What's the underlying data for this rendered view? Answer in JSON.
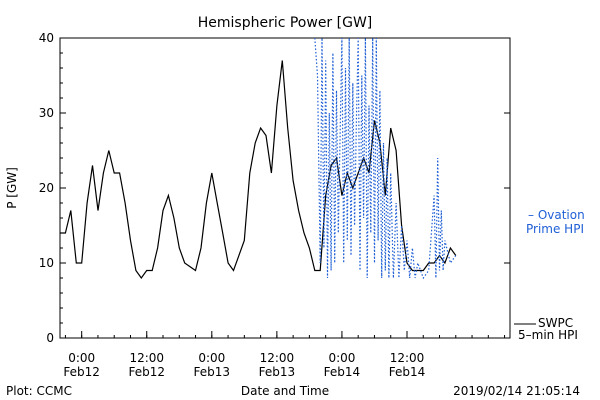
{
  "chart_data": {
    "type": "line",
    "title": "Hemispheric Power [GW]",
    "xlabel": "Date and Time",
    "ylabel": "P [GW]",
    "ylim": [
      0,
      40
    ],
    "yticks": [
      0,
      10,
      20,
      30,
      40
    ],
    "xlim": [
      "2019-02-11 20:00",
      "2019-02-15 07:00"
    ],
    "xticks": [
      {
        "t": "2019-02-12 00:00",
        "time": "0:00",
        "date": "Feb12"
      },
      {
        "t": "2019-02-12 12:00",
        "time": "12:00",
        "date": "Feb12"
      },
      {
        "t": "2019-02-13 00:00",
        "time": "0:00",
        "date": "Feb13"
      },
      {
        "t": "2019-02-13 12:00",
        "time": "12:00",
        "date": "Feb13"
      },
      {
        "t": "2019-02-14 00:00",
        "time": "0:00",
        "date": "Feb14"
      },
      {
        "t": "2019-02-14 12:00",
        "time": "12:00",
        "date": "Feb14"
      }
    ],
    "grid": false,
    "legend_position": "right",
    "footer_left": "Plot: CCMC",
    "footer_right": "2019/02/14 21:05:14",
    "series": [
      {
        "name": "SWPC 5-min HPI",
        "legend_lines": [
          "SWPC",
          "5–min HPI"
        ],
        "color": "#000000",
        "style": "solid",
        "points": [
          [
            "2019-02-11 20:00",
            14
          ],
          [
            "2019-02-11 21:00",
            14
          ],
          [
            "2019-02-11 22:00",
            17
          ],
          [
            "2019-02-11 23:00",
            10
          ],
          [
            "2019-02-12 00:00",
            10
          ],
          [
            "2019-02-12 01:00",
            18
          ],
          [
            "2019-02-12 02:00",
            23
          ],
          [
            "2019-02-12 03:00",
            17
          ],
          [
            "2019-02-12 04:00",
            22
          ],
          [
            "2019-02-12 05:00",
            25
          ],
          [
            "2019-02-12 06:00",
            22
          ],
          [
            "2019-02-12 07:00",
            22
          ],
          [
            "2019-02-12 08:00",
            18
          ],
          [
            "2019-02-12 09:00",
            13
          ],
          [
            "2019-02-12 10:00",
            9
          ],
          [
            "2019-02-12 11:00",
            8
          ],
          [
            "2019-02-12 12:00",
            9
          ],
          [
            "2019-02-12 13:00",
            9
          ],
          [
            "2019-02-12 14:00",
            12
          ],
          [
            "2019-02-12 15:00",
            17
          ],
          [
            "2019-02-12 16:00",
            19
          ],
          [
            "2019-02-12 17:00",
            16
          ],
          [
            "2019-02-12 18:00",
            12
          ],
          [
            "2019-02-12 19:00",
            10
          ],
          [
            "2019-02-12 21:00",
            9
          ],
          [
            "2019-02-12 22:00",
            12
          ],
          [
            "2019-02-12 23:00",
            18
          ],
          [
            "2019-02-13 00:00",
            22
          ],
          [
            "2019-02-13 01:00",
            18
          ],
          [
            "2019-02-13 02:00",
            14
          ],
          [
            "2019-02-13 03:00",
            10
          ],
          [
            "2019-02-13 04:00",
            9
          ],
          [
            "2019-02-13 06:00",
            13
          ],
          [
            "2019-02-13 07:00",
            22
          ],
          [
            "2019-02-13 08:00",
            26
          ],
          [
            "2019-02-13 09:00",
            28
          ],
          [
            "2019-02-13 10:00",
            27
          ],
          [
            "2019-02-13 11:00",
            22
          ],
          [
            "2019-02-13 12:00",
            31
          ],
          [
            "2019-02-13 13:00",
            37
          ],
          [
            "2019-02-13 14:00",
            28
          ],
          [
            "2019-02-13 15:00",
            21
          ],
          [
            "2019-02-13 16:00",
            17
          ],
          [
            "2019-02-13 17:00",
            14
          ],
          [
            "2019-02-13 18:00",
            12
          ],
          [
            "2019-02-13 19:00",
            9
          ],
          [
            "2019-02-13 20:00",
            9
          ],
          [
            "2019-02-13 21:00",
            19
          ],
          [
            "2019-02-13 22:00",
            23
          ],
          [
            "2019-02-13 23:00",
            24
          ],
          [
            "2019-02-14 00:00",
            19
          ],
          [
            "2019-02-14 01:00",
            22
          ],
          [
            "2019-02-14 02:00",
            20
          ],
          [
            "2019-02-14 03:00",
            22
          ],
          [
            "2019-02-14 04:00",
            24
          ],
          [
            "2019-02-14 05:00",
            22
          ],
          [
            "2019-02-14 06:00",
            29
          ],
          [
            "2019-02-14 07:00",
            26
          ],
          [
            "2019-02-14 08:00",
            19
          ],
          [
            "2019-02-14 09:00",
            28
          ],
          [
            "2019-02-14 10:00",
            25
          ],
          [
            "2019-02-14 11:00",
            15
          ],
          [
            "2019-02-14 12:00",
            10
          ],
          [
            "2019-02-14 13:00",
            9
          ],
          [
            "2019-02-14 15:00",
            9
          ],
          [
            "2019-02-14 16:00",
            10
          ],
          [
            "2019-02-14 17:00",
            10
          ],
          [
            "2019-02-14 18:00",
            11
          ],
          [
            "2019-02-14 19:00",
            10
          ],
          [
            "2019-02-14 20:00",
            12
          ],
          [
            "2019-02-14 21:00",
            11
          ]
        ]
      },
      {
        "name": "Ovation Prime HPI",
        "legend_lines": [
          "– Ovation",
          "Prime HPI"
        ],
        "color": "#1f5fd6",
        "style": "dotted",
        "points": [
          [
            "2019-02-13 19:00",
            40
          ],
          [
            "2019-02-13 19:30",
            35
          ],
          [
            "2019-02-13 20:00",
            10
          ],
          [
            "2019-02-13 20:20",
            40
          ],
          [
            "2019-02-13 20:40",
            12
          ],
          [
            "2019-02-13 21:00",
            37
          ],
          [
            "2019-02-13 21:20",
            8
          ],
          [
            "2019-02-13 21:40",
            30
          ],
          [
            "2019-02-13 22:00",
            9
          ],
          [
            "2019-02-13 22:20",
            38
          ],
          [
            "2019-02-13 22:40",
            10
          ],
          [
            "2019-02-13 23:00",
            33
          ],
          [
            "2019-02-13 23:20",
            14
          ],
          [
            "2019-02-14 00:00",
            40
          ],
          [
            "2019-02-14 00:20",
            10
          ],
          [
            "2019-02-14 00:40",
            36
          ],
          [
            "2019-02-14 01:00",
            13
          ],
          [
            "2019-02-14 01:20",
            40
          ],
          [
            "2019-02-14 01:40",
            11
          ],
          [
            "2019-02-14 02:00",
            34
          ],
          [
            "2019-02-14 02:20",
            15
          ],
          [
            "2019-02-14 02:40",
            29
          ],
          [
            "2019-02-14 03:00",
            40
          ],
          [
            "2019-02-14 03:20",
            9
          ],
          [
            "2019-02-14 03:40",
            35
          ],
          [
            "2019-02-14 04:00",
            16
          ],
          [
            "2019-02-14 04:20",
            40
          ],
          [
            "2019-02-14 04:40",
            8
          ],
          [
            "2019-02-14 05:00",
            31
          ],
          [
            "2019-02-14 05:20",
            14
          ],
          [
            "2019-02-14 05:40",
            40
          ],
          [
            "2019-02-14 06:00",
            10
          ],
          [
            "2019-02-14 06:20",
            40
          ],
          [
            "2019-02-14 06:40",
            13
          ],
          [
            "2019-02-14 07:00",
            33
          ],
          [
            "2019-02-14 07:20",
            8
          ],
          [
            "2019-02-14 07:40",
            26
          ],
          [
            "2019-02-14 08:00",
            9
          ],
          [
            "2019-02-14 08:20",
            24
          ],
          [
            "2019-02-14 08:40",
            8
          ],
          [
            "2019-02-14 09:00",
            22
          ],
          [
            "2019-02-14 09:30",
            8
          ],
          [
            "2019-02-14 10:00",
            18
          ],
          [
            "2019-02-14 10:30",
            8
          ],
          [
            "2019-02-14 11:00",
            15
          ],
          [
            "2019-02-14 11:30",
            9
          ],
          [
            "2019-02-14 12:00",
            13
          ],
          [
            "2019-02-14 12:30",
            8
          ],
          [
            "2019-02-14 13:00",
            12
          ],
          [
            "2019-02-14 13:30",
            8
          ],
          [
            "2019-02-14 14:00",
            10
          ],
          [
            "2019-02-14 15:00",
            8
          ],
          [
            "2019-02-14 16:00",
            9
          ],
          [
            "2019-02-14 17:00",
            19
          ],
          [
            "2019-02-14 17:20",
            8
          ],
          [
            "2019-02-14 17:40",
            24
          ],
          [
            "2019-02-14 18:00",
            9
          ],
          [
            "2019-02-14 18:20",
            17
          ],
          [
            "2019-02-14 18:40",
            9
          ],
          [
            "2019-02-14 19:00",
            13
          ],
          [
            "2019-02-14 20:00",
            10
          ],
          [
            "2019-02-14 21:00",
            11
          ]
        ]
      }
    ]
  }
}
